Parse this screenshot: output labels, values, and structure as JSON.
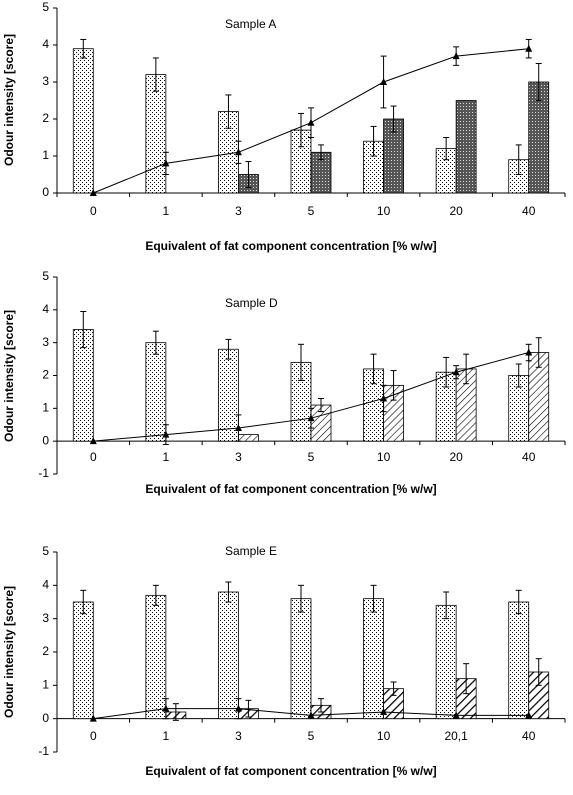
{
  "chart_data": [
    {
      "type": "bar",
      "title": "Sample A",
      "x_label": "Equivalent of fat component concentration [% w/w]",
      "y_label": "Odour intensity [score]",
      "categories": [
        "0",
        "1",
        "3",
        "5",
        "10",
        "20",
        "40"
      ],
      "ylim": [
        0,
        5
      ],
      "yticks": [
        0,
        1,
        2,
        3,
        4,
        5
      ],
      "series": [
        {
          "type": "bar",
          "pattern": "dots",
          "color": "#000000",
          "values": [
            3.9,
            3.2,
            2.2,
            1.7,
            1.4,
            1.2,
            0.9
          ],
          "errors": [
            0.25,
            0.45,
            0.45,
            0.45,
            0.4,
            0.3,
            0.4
          ]
        },
        {
          "type": "bar",
          "pattern": "crosshatch",
          "color": "#000000",
          "values": [
            null,
            null,
            0.5,
            1.1,
            2.0,
            2.5,
            3.0
          ],
          "errors": [
            null,
            null,
            0.35,
            0.2,
            0.35,
            null,
            0.5
          ]
        },
        {
          "type": "line",
          "marker": "triangle",
          "color": "#000000",
          "values": [
            0,
            0.8,
            1.1,
            1.9,
            3.0,
            3.7,
            3.9
          ],
          "errors": [
            null,
            0.3,
            0.3,
            0.4,
            0.7,
            0.25,
            0.25
          ]
        }
      ]
    },
    {
      "type": "bar",
      "title": "Sample D",
      "x_label": "Equivalent of fat component concentration [% w/w]",
      "y_label": "Odour intensity [score]",
      "categories": [
        "0",
        "1",
        "3",
        "5",
        "10",
        "20",
        "40"
      ],
      "ylim": [
        -1,
        5
      ],
      "yticks": [
        -1,
        0,
        1,
        2,
        3,
        4,
        5
      ],
      "series": [
        {
          "type": "bar",
          "pattern": "dots",
          "color": "#000000",
          "values": [
            3.4,
            3.0,
            2.8,
            2.4,
            2.2,
            2.1,
            2.0
          ],
          "errors": [
            0.55,
            0.35,
            0.3,
            0.55,
            0.45,
            0.45,
            0.35
          ]
        },
        {
          "type": "bar",
          "pattern": "hatch",
          "color": "#000000",
          "values": [
            null,
            null,
            0.2,
            1.1,
            1.7,
            2.2,
            2.7
          ],
          "errors": [
            null,
            null,
            null,
            0.2,
            0.45,
            0.45,
            0.45
          ]
        },
        {
          "type": "line",
          "marker": "triangle",
          "color": "#000000",
          "values": [
            0,
            0.2,
            0.4,
            0.7,
            1.3,
            2.1,
            2.7
          ],
          "errors": [
            null,
            0.3,
            0.4,
            0.3,
            0.4,
            0.2,
            0.25
          ]
        }
      ]
    },
    {
      "type": "bar",
      "title": "Sample E",
      "x_label": "Equivalent of fat component concentration [% w/w]",
      "y_label": "Odour intensity [score]",
      "categories": [
        "0",
        "1",
        "3",
        "5",
        "10",
        "20,1",
        "40"
      ],
      "ylim": [
        -1,
        5
      ],
      "yticks": [
        -1,
        0,
        1,
        2,
        3,
        4,
        5
      ],
      "series": [
        {
          "type": "bar",
          "pattern": "dots",
          "color": "#000000",
          "values": [
            3.5,
            3.7,
            3.8,
            3.6,
            3.6,
            3.4,
            3.5
          ],
          "errors": [
            0.35,
            0.3,
            0.3,
            0.4,
            0.4,
            0.4,
            0.35
          ]
        },
        {
          "type": "bar",
          "pattern": "boldhatch",
          "color": "#000000",
          "values": [
            null,
            0.2,
            0.3,
            0.4,
            0.9,
            1.2,
            1.4
          ],
          "errors": [
            null,
            0.25,
            0.25,
            0.2,
            0.2,
            0.45,
            0.4
          ]
        },
        {
          "type": "line",
          "marker": "triangle",
          "color": "#000000",
          "values": [
            0,
            0.3,
            0.3,
            0.1,
            0.2,
            0.1,
            0.1
          ],
          "errors": [
            null,
            0.3,
            0.3,
            null,
            null,
            null,
            null
          ]
        }
      ]
    }
  ]
}
